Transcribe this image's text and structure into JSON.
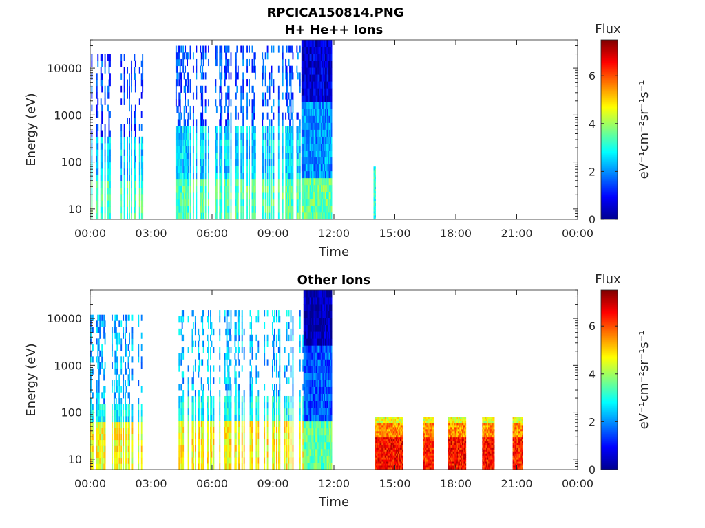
{
  "figure": {
    "title": "RPCICA150814.PNG"
  },
  "colormap": [
    "#00008f",
    "#0000ff",
    "#0080ff",
    "#00ffff",
    "#80ff80",
    "#ffff00",
    "#ff8000",
    "#ff0000",
    "#800000"
  ],
  "chart_data": [
    {
      "type": "heatmap",
      "title": "H+ He++ Ions",
      "xlabel": "Time",
      "ylabel": "Energy (eV)",
      "yscale": "log",
      "ylim": [
        6,
        40000
      ],
      "xlim": [
        0,
        24
      ],
      "x_tick_labels": [
        "00:00",
        "03:00",
        "06:00",
        "09:00",
        "12:00",
        "15:00",
        "18:00",
        "21:00",
        "00:00"
      ],
      "y_tick_labels": [
        "10",
        "100",
        "1000",
        "10000"
      ],
      "colorbar": {
        "label": "Flux",
        "units": "eV⁻¹cm⁻²sr⁻¹s⁻¹",
        "range": [
          0,
          7.5
        ],
        "tick_labels": [
          "0",
          "2",
          "4",
          "6"
        ]
      },
      "grid": false,
      "segments": [
        {
          "start": 0.0,
          "end": 2.6,
          "top": 20000,
          "density": 0.45,
          "low_flux": 3.3,
          "mid_flux": 2.4,
          "high_flux": 1.4,
          "mid_energy": 40,
          "high_energy": 300
        },
        {
          "start": 4.1,
          "end": 10.4,
          "top": 30000,
          "density": 0.5,
          "low_flux": 3.4,
          "mid_flux": 2.5,
          "high_flux": 1.5,
          "mid_energy": 50,
          "high_energy": 500
        },
        {
          "start": 10.4,
          "end": 11.9,
          "top": 40000,
          "density": 1.0,
          "low_flux": 3.6,
          "mid_flux": 2.0,
          "high_flux": 0.6,
          "mid_energy": 40,
          "high_energy": 2000
        },
        {
          "start": 13.95,
          "end": 14.05,
          "top": 80,
          "density": 1.0,
          "low_flux": 3.0,
          "mid_flux": 3.0,
          "high_flux": 3.0,
          "mid_energy": 20,
          "high_energy": 60
        }
      ]
    },
    {
      "type": "heatmap",
      "title": "Other Ions",
      "xlabel": "Time",
      "ylabel": "Energy (eV)",
      "yscale": "log",
      "ylim": [
        6,
        40000
      ],
      "xlim": [
        0,
        24
      ],
      "x_tick_labels": [
        "00:00",
        "03:00",
        "06:00",
        "09:00",
        "12:00",
        "15:00",
        "18:00",
        "21:00",
        "00:00"
      ],
      "y_tick_labels": [
        "10",
        "100",
        "1000",
        "10000"
      ],
      "colorbar": {
        "label": "Flux",
        "units": "eV⁻¹cm⁻²sr⁻¹s⁻¹",
        "range": [
          0,
          7.5
        ],
        "tick_labels": [
          "0",
          "2",
          "4",
          "6"
        ]
      },
      "grid": false,
      "segments": [
        {
          "start": 0.0,
          "end": 2.6,
          "top": 12000,
          "density": 0.3,
          "low_flux": 4.6,
          "mid_flux": 2.8,
          "high_flux": 2.2,
          "mid_energy": 60,
          "high_energy": 150
        },
        {
          "start": 4.1,
          "end": 10.5,
          "top": 15000,
          "density": 0.35,
          "low_flux": 4.7,
          "mid_flux": 2.9,
          "high_flux": 2.3,
          "mid_energy": 60,
          "high_energy": 200
        },
        {
          "start": 10.5,
          "end": 11.9,
          "top": 40000,
          "density": 1.0,
          "low_flux": 3.5,
          "mid_flux": 1.6,
          "high_flux": 0.3,
          "mid_energy": 60,
          "high_energy": 3000
        },
        {
          "start": 14.0,
          "end": 15.4,
          "top": 80,
          "density": 1.0,
          "low_flux": 6.5,
          "mid_flux": 5.5,
          "high_flux": 4.5,
          "mid_energy": 30,
          "high_energy": 60
        },
        {
          "start": 16.4,
          "end": 16.9,
          "top": 80,
          "density": 1.0,
          "low_flux": 6.3,
          "mid_flux": 5.5,
          "high_flux": 4.5,
          "mid_energy": 30,
          "high_energy": 60
        },
        {
          "start": 17.6,
          "end": 18.5,
          "top": 80,
          "density": 1.0,
          "low_flux": 6.5,
          "mid_flux": 5.5,
          "high_flux": 4.5,
          "mid_energy": 30,
          "high_energy": 60
        },
        {
          "start": 19.3,
          "end": 19.9,
          "top": 80,
          "density": 1.0,
          "low_flux": 6.5,
          "mid_flux": 5.5,
          "high_flux": 4.5,
          "mid_energy": 30,
          "high_energy": 60
        },
        {
          "start": 20.8,
          "end": 21.3,
          "top": 80,
          "density": 1.0,
          "low_flux": 6.3,
          "mid_flux": 5.5,
          "high_flux": 4.5,
          "mid_energy": 30,
          "high_energy": 60
        }
      ]
    }
  ]
}
